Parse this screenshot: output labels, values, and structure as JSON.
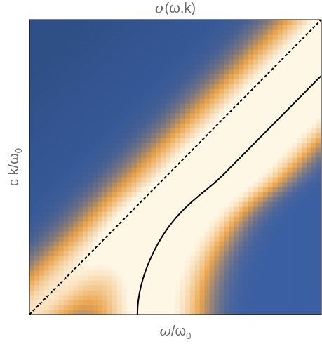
{
  "chart_data": {
    "type": "heatmap",
    "title": {
      "sym": "σ",
      "rest": "(ω,k)",
      "full": "σ(ω,k)"
    },
    "xlabel": {
      "sym": "ω",
      "rest": "/ω",
      "sub": "0",
      "full": "ω/ω0"
    },
    "ylabel": {
      "prefix": "c k/ω",
      "sub": "0",
      "full": "c k/ω0"
    },
    "xlim": [
      0,
      1
    ],
    "ylim": [
      0,
      1
    ],
    "ticks_shown": false,
    "colormap": {
      "low": "#3b5fa3",
      "mid": "#e9a44d",
      "high": "#fff7e6",
      "dark_corner": "#2f4f86"
    },
    "light_cone": {
      "style": "dashed",
      "color": "#000000",
      "points": [
        [
          0,
          0
        ],
        [
          1,
          1
        ]
      ]
    },
    "dispersion_curve": {
      "style": "solid",
      "color": "#000000",
      "omega_cutoff": 0.37,
      "asymptote_offset": 0.19
    },
    "bands": [
      {
        "center": "light_cone",
        "width": 0.08,
        "peak": 0.9
      },
      {
        "center": "dispersion_curve",
        "width": 0.1,
        "peak": 1.0
      },
      {
        "center": "outer",
        "offset": 0.16,
        "width": 0.07,
        "peak": 0.6
      }
    ]
  }
}
